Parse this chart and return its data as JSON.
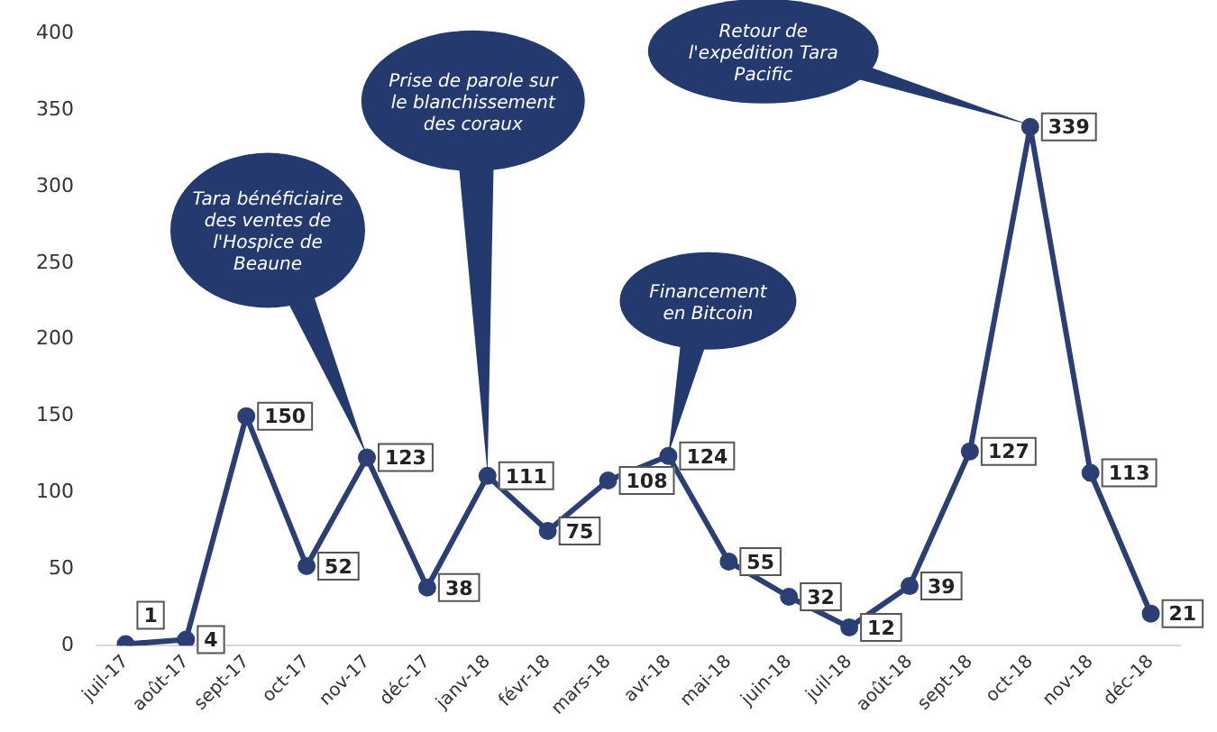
{
  "chart_data": {
    "type": "line",
    "categories": [
      "juil-17",
      "août-17",
      "sept-17",
      "oct-17",
      "nov-17",
      "déc-17",
      "janv-18",
      "févr-18",
      "mars-18",
      "avr-18",
      "mai-18",
      "juin-18",
      "juil-18",
      "août-18",
      "sept-18",
      "oct-18",
      "nov-18",
      "déc-18"
    ],
    "series": [
      {
        "color": "#2b3f74",
        "values": [
          1,
          4,
          150,
          52,
          123,
          38,
          111,
          75,
          108,
          124,
          55,
          32,
          12,
          39,
          127,
          339,
          113,
          21
        ]
      }
    ],
    "ylim": [
      0,
      400
    ],
    "yticks": [
      0,
      50,
      100,
      150,
      200,
      250,
      300,
      350,
      400
    ],
    "grid": false,
    "legend": false,
    "marker": "circle",
    "line_style": "solid",
    "data_labels": true,
    "annotations": [
      {
        "text": "Tara bénéficiaire des ventes de l'Hospice de Beaune",
        "x": "nov-17",
        "y": 123
      },
      {
        "text": "Prise de parole sur le blanchissement des coraux",
        "x": "janv-18",
        "y": 111
      },
      {
        "text": "Financement en Bitcoin",
        "x": "avr-18",
        "y": 124
      },
      {
        "text": "Retour de l'expédition Tara Pacific",
        "x": "oct-18",
        "y": 339
      }
    ]
  }
}
